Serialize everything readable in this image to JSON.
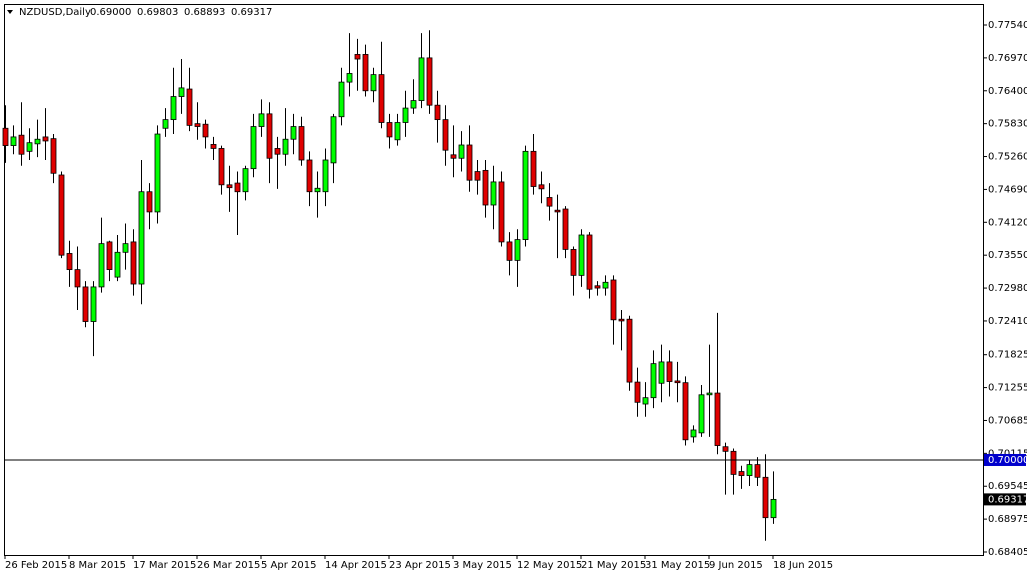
{
  "chart_data": {
    "type": "candlestick",
    "title": "NZDUSD,Daily",
    "ohlc_labels": [
      "0.69000",
      "0.69803",
      "0.68893",
      "0.69317"
    ],
    "categories": [
      "26 Feb 2015",
      null,
      null,
      null,
      null,
      null,
      null,
      null,
      "8 Mar 2015",
      null,
      null,
      null,
      null,
      null,
      null,
      null,
      "17 Mar 2015",
      null,
      null,
      null,
      null,
      null,
      null,
      null,
      "26 Mar 2015",
      null,
      null,
      null,
      null,
      null,
      null,
      null,
      "5 Apr 2015",
      null,
      null,
      null,
      null,
      null,
      null,
      null,
      "14 Apr 2015",
      null,
      null,
      null,
      null,
      null,
      null,
      null,
      "23 Apr 2015",
      null,
      null,
      null,
      null,
      null,
      null,
      null,
      "3 May 2015",
      null,
      null,
      null,
      null,
      null,
      null,
      null,
      "12 May 2015",
      null,
      null,
      null,
      null,
      null,
      null,
      null,
      "21 May 2015",
      null,
      null,
      null,
      null,
      null,
      null,
      null,
      "31 May 2015",
      null,
      null,
      null,
      null,
      null,
      null,
      null,
      "9 Jun 2015",
      null,
      null,
      null,
      null,
      null,
      null,
      null,
      "18 Jun 2015"
    ],
    "open": [
      0.7575,
      0.7545,
      0.7563,
      0.7535,
      0.7548,
      0.756,
      0.7557,
      0.7494,
      0.7358,
      0.733,
      0.73,
      0.724,
      0.73,
      0.7378,
      0.7317,
      0.736,
      0.7378,
      0.7305,
      0.7465,
      0.743,
      0.7575,
      0.759,
      0.763,
      0.7643,
      0.7583,
      0.7582,
      0.7547,
      0.754,
      0.7477,
      0.748,
      0.7465,
      0.7505,
      0.7578,
      0.76,
      0.754,
      0.753,
      0.7556,
      0.7578,
      0.752,
      0.7465,
      0.7465,
      0.7515,
      0.7595,
      0.7655,
      0.7703,
      0.7703,
      0.764,
      0.7668,
      0.7585,
      0.7555,
      0.7585,
      0.761,
      0.7623,
      0.7697,
      0.7615,
      0.759,
      0.7529,
      0.7523,
      0.7546,
      0.75,
      0.7502,
      0.7442,
      0.7482,
      0.7378,
      0.7346,
      0.7382,
      0.7535,
      0.7477,
      0.7455,
      0.7433,
      0.7435,
      0.7365,
      0.732,
      0.739,
      0.7302,
      0.7298,
      0.7312,
      0.7244,
      0.7244,
      0.7135,
      0.7097,
      0.7108,
      0.7133,
      0.717,
      0.7137,
      0.7134,
      0.704,
      0.7047,
      0.7113,
      0.7116,
      0.7023,
      0.7015,
      0.698,
      0.6973,
      0.6992,
      0.697,
      0.69
    ],
    "high": [
      0.7615,
      0.758,
      0.762,
      0.7575,
      0.759,
      0.761,
      0.7565,
      0.75,
      0.738,
      0.737,
      0.731,
      0.731,
      0.742,
      0.738,
      0.739,
      0.741,
      0.74,
      0.752,
      0.748,
      0.758,
      0.761,
      0.768,
      0.7695,
      0.768,
      0.762,
      0.759,
      0.756,
      0.7545,
      0.751,
      0.75,
      0.751,
      0.76,
      0.7625,
      0.762,
      0.756,
      0.761,
      0.76,
      0.7595,
      0.7535,
      0.75,
      0.754,
      0.76,
      0.768,
      0.774,
      0.773,
      0.772,
      0.768,
      0.7725,
      0.76,
      0.76,
      0.764,
      0.766,
      0.774,
      0.7745,
      0.764,
      0.7615,
      0.758,
      0.757,
      0.758,
      0.752,
      0.752,
      0.751,
      0.75,
      0.7395,
      0.74,
      0.7545,
      0.7565,
      0.75,
      0.748,
      0.746,
      0.744,
      0.737,
      0.74,
      0.7395,
      0.731,
      0.732,
      0.732,
      0.726,
      0.725,
      0.716,
      0.7135,
      0.719,
      0.72,
      0.719,
      0.717,
      0.7145,
      0.706,
      0.713,
      0.72,
      0.7255,
      0.703,
      0.702,
      0.699,
      0.7,
      0.7005,
      0.701,
      0.69803
    ],
    "low": [
      0.7515,
      0.753,
      0.751,
      0.752,
      0.7525,
      0.752,
      0.748,
      0.735,
      0.73,
      0.726,
      0.723,
      0.718,
      0.729,
      0.731,
      0.731,
      0.733,
      0.7285,
      0.727,
      0.74,
      0.741,
      0.756,
      0.7565,
      0.76,
      0.757,
      0.7555,
      0.754,
      0.752,
      0.746,
      0.743,
      0.739,
      0.745,
      0.749,
      0.756,
      0.748,
      0.747,
      0.751,
      0.753,
      0.751,
      0.744,
      0.742,
      0.744,
      0.748,
      0.758,
      0.763,
      0.764,
      0.763,
      0.762,
      0.7575,
      0.754,
      0.7545,
      0.756,
      0.76,
      0.761,
      0.76,
      0.755,
      0.751,
      0.749,
      0.75,
      0.7465,
      0.746,
      0.742,
      0.74,
      0.737,
      0.732,
      0.73,
      0.737,
      0.746,
      0.7445,
      0.7415,
      0.735,
      0.735,
      0.7285,
      0.73,
      0.728,
      0.7285,
      0.7285,
      0.72,
      0.719,
      0.712,
      0.7075,
      0.7075,
      0.709,
      0.71,
      0.711,
      0.71,
      0.7025,
      0.703,
      0.704,
      0.704,
      0.701,
      0.694,
      0.694,
      0.695,
      0.6955,
      0.6955,
      0.686,
      0.68893
    ],
    "close": [
      0.7545,
      0.756,
      0.753,
      0.755,
      0.7556,
      0.7553,
      0.7497,
      0.7355,
      0.733,
      0.73,
      0.724,
      0.73,
      0.7375,
      0.733,
      0.736,
      0.7375,
      0.7305,
      0.7465,
      0.743,
      0.7565,
      0.759,
      0.763,
      0.7645,
      0.758,
      0.7578,
      0.756,
      0.754,
      0.7477,
      0.7472,
      0.7465,
      0.7505,
      0.7578,
      0.76,
      0.7523,
      0.753,
      0.7556,
      0.7578,
      0.752,
      0.7465,
      0.7471,
      0.752,
      0.7595,
      0.7655,
      0.767,
      0.7695,
      0.764,
      0.7668,
      0.7585,
      0.756,
      0.7585,
      0.761,
      0.7623,
      0.7697,
      0.7615,
      0.759,
      0.7537,
      0.7523,
      0.7546,
      0.7485,
      0.7485,
      0.7442,
      0.7482,
      0.7378,
      0.7346,
      0.7382,
      0.7535,
      0.7474,
      0.747,
      0.744,
      0.743,
      0.7365,
      0.732,
      0.739,
      0.7296,
      0.7298,
      0.7308,
      0.7243,
      0.7241,
      0.7135,
      0.71,
      0.7108,
      0.7167,
      0.717,
      0.7136,
      0.7134,
      0.7035,
      0.7052,
      0.7113,
      0.7116,
      0.7025,
      0.7015,
      0.6975,
      0.6973,
      0.6992,
      0.697,
      0.69,
      0.69317
    ],
    "bull_color": "#00ff00",
    "bear_color": "#e00000",
    "ylim": [
      0.68353,
      0.77904
    ],
    "yticks": [
      {
        "value": 0.7754,
        "label": "0.77540"
      },
      {
        "value": 0.7697,
        "label": "0.76970"
      },
      {
        "value": 0.764,
        "label": "0.76400"
      },
      {
        "value": 0.7583,
        "label": "0.75830"
      },
      {
        "value": 0.7526,
        "label": "0.75260"
      },
      {
        "value": 0.7469,
        "label": "0.74690"
      },
      {
        "value": 0.7412,
        "label": "0.74120"
      },
      {
        "value": 0.7355,
        "label": "0.73550"
      },
      {
        "value": 0.7298,
        "label": "0.72980"
      },
      {
        "value": 0.7241,
        "label": "0.72410"
      },
      {
        "value": 0.71825,
        "label": "0.71825"
      },
      {
        "value": 0.71255,
        "label": "0.71255"
      },
      {
        "value": 0.70685,
        "label": "0.70685"
      },
      {
        "value": 0.70115,
        "label": "0.70115"
      },
      {
        "value": 0.69545,
        "label": "0.69545"
      },
      {
        "value": 0.68975,
        "label": "0.68975"
      },
      {
        "value": 0.68405,
        "label": "0.68405"
      }
    ],
    "hline": {
      "value": 0.7,
      "label": "0.70000",
      "color": "#0000cc"
    },
    "grid": false
  }
}
